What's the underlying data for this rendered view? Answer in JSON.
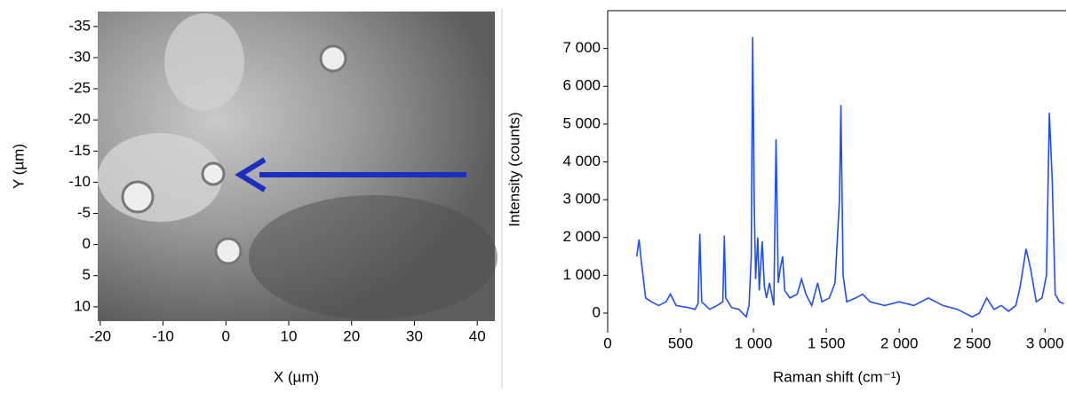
{
  "chart_data": [
    {
      "type": "image",
      "xlabel": "X (µm)",
      "ylabel": "Y (µm)",
      "xlim": [
        -20.4,
        42.8
      ],
      "xticks": [
        -20,
        -10,
        0,
        10,
        20,
        30,
        40
      ],
      "ylim": [
        12.3,
        -37.4
      ],
      "yticks": [
        -35,
        -30,
        -25,
        -20,
        -15,
        -10,
        -5,
        0,
        5,
        10
      ]
    },
    {
      "type": "line",
      "xlabel": "Raman shift (cm⁻¹)",
      "ylabel": "Intensity (counts)",
      "xlim": [
        0,
        3145
      ],
      "xticks": [
        0,
        500,
        {
          "value": 1000,
          "label": "1 000"
        },
        {
          "value": 1500,
          "label": "1 500"
        },
        {
          "value": 2000,
          "label": "2 000"
        },
        {
          "value": 2500,
          "label": "2 500"
        },
        {
          "value": 3000,
          "label": "3 000"
        }
      ],
      "ylim": [
        -400,
        8000
      ],
      "yticks": [
        0,
        {
          "value": 1000,
          "label": "1 000"
        },
        {
          "value": 2000,
          "label": "2 000"
        },
        {
          "value": 3000,
          "label": "3 000"
        },
        {
          "value": 4000,
          "label": "4 000"
        },
        {
          "value": 5000,
          "label": "5 000"
        },
        {
          "value": 6000,
          "label": "6 000"
        },
        {
          "value": 7000,
          "label": "7 000"
        }
      ],
      "color": "#1f4ff0",
      "x": [
        200,
        215,
        230,
        260,
        300,
        350,
        400,
        430,
        470,
        550,
        600,
        620,
        632,
        645,
        700,
        750,
        790,
        800,
        810,
        850,
        900,
        950,
        970,
        985,
        995,
        1005,
        1015,
        1030,
        1040,
        1060,
        1075,
        1090,
        1110,
        1140,
        1155,
        1170,
        1185,
        1200,
        1215,
        1250,
        1300,
        1330,
        1360,
        1400,
        1440,
        1470,
        1520,
        1560,
        1590,
        1600,
        1615,
        1640,
        1700,
        1750,
        1800,
        1900,
        2000,
        2100,
        2200,
        2300,
        2400,
        2500,
        2550,
        2600,
        2650,
        2700,
        2750,
        2800,
        2830,
        2870,
        2900,
        2940,
        2980,
        3010,
        3030,
        3050,
        3070,
        3100,
        3130
      ],
      "values": [
        1500,
        1950,
        1400,
        400,
        300,
        200,
        300,
        500,
        200,
        150,
        100,
        250,
        2100,
        300,
        100,
        200,
        300,
        2050,
        400,
        150,
        100,
        -100,
        200,
        1500,
        7300,
        3000,
        900,
        2000,
        600,
        1900,
        700,
        400,
        800,
        200,
        4600,
        800,
        1200,
        1500,
        600,
        400,
        500,
        900,
        500,
        200,
        800,
        300,
        400,
        800,
        3000,
        5500,
        1000,
        300,
        400,
        500,
        300,
        200,
        300,
        200,
        400,
        200,
        100,
        -100,
        0,
        400,
        100,
        200,
        50,
        200,
        700,
        1700,
        1200,
        300,
        400,
        1000,
        5300,
        3500,
        500,
        300,
        250
      ]
    }
  ]
}
